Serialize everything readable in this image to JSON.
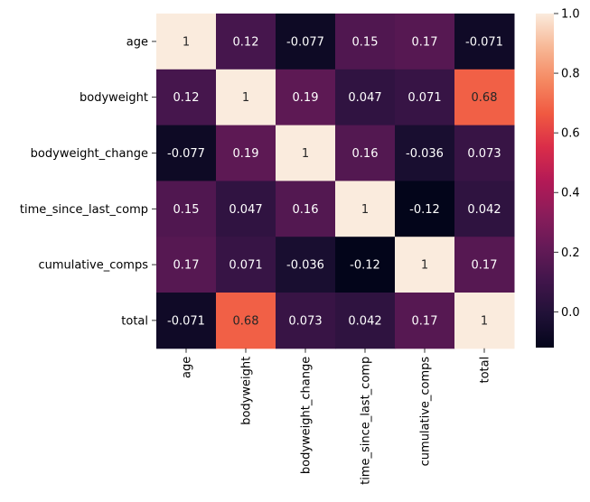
{
  "chart_data": {
    "type": "heatmap",
    "title": "",
    "xlabel": "",
    "ylabel": "",
    "rows": [
      "age",
      "bodyweight",
      "bodyweight_change",
      "time_since_last_comp",
      "cumulative_comps",
      "total"
    ],
    "columns": [
      "age",
      "bodyweight",
      "bodyweight_change",
      "time_since_last_comp",
      "cumulative_comps",
      "total"
    ],
    "values": [
      [
        1,
        0.12,
        -0.077,
        0.15,
        0.17,
        -0.071
      ],
      [
        0.12,
        1,
        0.19,
        0.047,
        0.071,
        0.68
      ],
      [
        -0.077,
        0.19,
        1,
        0.16,
        -0.036,
        0.073
      ],
      [
        0.15,
        0.047,
        0.16,
        1,
        -0.12,
        0.042
      ],
      [
        0.17,
        0.071,
        -0.036,
        -0.12,
        1,
        0.17
      ],
      [
        -0.071,
        0.68,
        0.073,
        0.042,
        0.17,
        1
      ]
    ],
    "labels": [
      [
        "1",
        "0.12",
        "-0.077",
        "0.15",
        "0.17",
        "-0.071"
      ],
      [
        "0.12",
        "1",
        "0.19",
        "0.047",
        "0.071",
        "0.68"
      ],
      [
        "-0.077",
        "0.19",
        "1",
        "0.16",
        "-0.036",
        "0.073"
      ],
      [
        "0.15",
        "0.047",
        "0.16",
        "1",
        "-0.12",
        "0.042"
      ],
      [
        "0.17",
        "0.071",
        "-0.036",
        "-0.12",
        "1",
        "0.17"
      ],
      [
        "-0.071",
        "0.68",
        "0.073",
        "0.042",
        "0.17",
        "1"
      ]
    ],
    "colormap": "rocket",
    "colorbar": {
      "range": [
        -0.12,
        1.0
      ],
      "ticks": [
        0.0,
        0.2,
        0.4,
        0.6,
        0.8,
        1.0
      ],
      "tick_labels": [
        "0.0",
        "0.2",
        "0.4",
        "0.6",
        "0.8",
        "1.0"
      ]
    },
    "colors": {
      "label_dark": "#262626",
      "label_light": "#ffffff"
    }
  }
}
